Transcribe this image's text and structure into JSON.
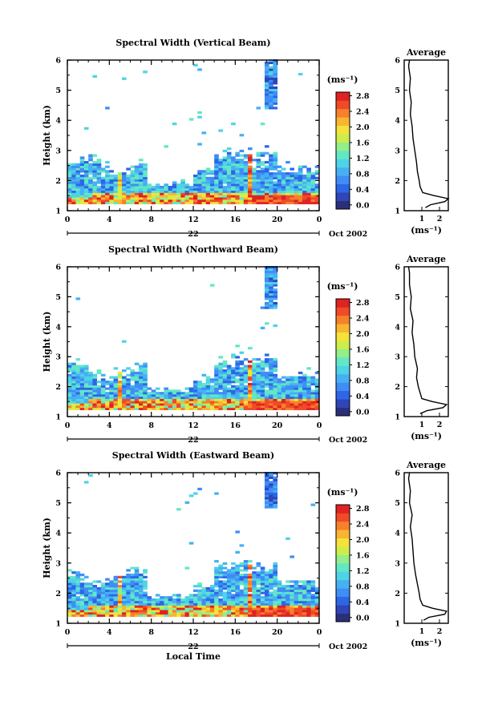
{
  "chart_data": [
    {
      "type": "heatmap",
      "title": "Spectral Width (Vertical Beam)",
      "ylabel": "Height (km)",
      "x_ticks": [
        "0",
        "4",
        "8",
        "12",
        "16",
        "20",
        "0"
      ],
      "xlim": [
        0,
        24
      ],
      "y_ticks": [
        "1",
        "2",
        "3",
        "4",
        "5",
        "6"
      ],
      "ylim": [
        1,
        6
      ],
      "day_label": "22",
      "date_label": "Oct 2002",
      "colorbar": {
        "unit_label": "(ms⁻¹)",
        "ticks": [
          "0.0",
          "0.4",
          "0.8",
          "1.2",
          "1.6",
          "2.0",
          "2.4",
          "2.8"
        ],
        "range": [
          0.0,
          3.0
        ]
      },
      "average_profile": {
        "title": "Average",
        "xlabel": "(ms⁻¹)",
        "x_ticks": [
          "1",
          "2"
        ],
        "y_ticks": [
          "1",
          "2",
          "3",
          "4",
          "5",
          "6"
        ],
        "height_km": [
          1.1,
          1.2,
          1.3,
          1.4,
          1.5,
          1.6,
          1.8,
          2.0,
          2.3,
          2.6,
          3.0,
          3.4,
          3.8,
          4.2,
          4.6,
          5.0,
          5.4,
          5.8,
          6.0
        ],
        "width_ms": [
          1.2,
          1.5,
          2.3,
          2.5,
          1.7,
          1.05,
          0.9,
          0.85,
          0.75,
          0.7,
          0.6,
          0.5,
          0.45,
          0.35,
          0.4,
          0.3,
          0.35,
          0.25,
          0.3
        ]
      }
    },
    {
      "type": "heatmap",
      "title": "Spectral Width (Northward Beam)",
      "ylabel": "Height (km)",
      "x_ticks": [
        "0",
        "4",
        "8",
        "12",
        "16",
        "20",
        "0"
      ],
      "xlim": [
        0,
        24
      ],
      "y_ticks": [
        "1",
        "2",
        "3",
        "4",
        "5",
        "6"
      ],
      "ylim": [
        1,
        6
      ],
      "day_label": "22",
      "date_label": "Oct 2002",
      "colorbar": {
        "unit_label": "(ms⁻¹)",
        "ticks": [
          "0.0",
          "0.4",
          "0.8",
          "1.2",
          "1.6",
          "2.0",
          "2.4",
          "2.8"
        ],
        "range": [
          0.0,
          3.0
        ]
      },
      "average_profile": {
        "title": "Average",
        "xlabel": "(ms⁻¹)",
        "x_ticks": [
          "1",
          "2"
        ],
        "y_ticks": [
          "1",
          "2",
          "3",
          "4",
          "5",
          "6"
        ],
        "height_km": [
          1.1,
          1.2,
          1.3,
          1.4,
          1.5,
          1.6,
          1.8,
          2.0,
          2.3,
          2.6,
          3.0,
          3.4,
          3.8,
          4.2,
          4.6,
          5.0,
          5.4,
          5.8,
          6.0
        ],
        "width_ms": [
          0.9,
          1.3,
          2.2,
          2.4,
          1.6,
          1.0,
          0.9,
          0.8,
          0.7,
          0.75,
          0.6,
          0.55,
          0.45,
          0.5,
          0.35,
          0.4,
          0.3,
          0.3,
          0.25
        ]
      }
    },
    {
      "type": "heatmap",
      "title": "Spectral Width (Eastward Beam)",
      "ylabel": "Height (km)",
      "xlabel": "Local Time",
      "x_ticks": [
        "0",
        "4",
        "8",
        "12",
        "16",
        "20",
        "0"
      ],
      "xlim": [
        0,
        24
      ],
      "y_ticks": [
        "1",
        "2",
        "3",
        "4",
        "5",
        "6"
      ],
      "ylim": [
        1,
        6
      ],
      "day_label": "22",
      "date_label": "Oct 2002",
      "colorbar": {
        "unit_label": "(ms⁻¹)",
        "ticks": [
          "0.0",
          "0.4",
          "0.8",
          "1.2",
          "1.6",
          "2.0",
          "2.4",
          "2.8"
        ],
        "range": [
          0.0,
          3.0
        ]
      },
      "average_profile": {
        "title": "Average",
        "xlabel": "(ms⁻¹)",
        "x_ticks": [
          "1",
          "2"
        ],
        "y_ticks": [
          "1",
          "2",
          "3",
          "4",
          "5",
          "6"
        ],
        "height_km": [
          1.1,
          1.2,
          1.3,
          1.4,
          1.5,
          1.6,
          1.8,
          2.0,
          2.3,
          2.6,
          3.0,
          3.4,
          3.8,
          4.2,
          4.6,
          5.0,
          5.4,
          5.8,
          6.0
        ],
        "width_ms": [
          1.1,
          1.4,
          2.3,
          2.4,
          1.6,
          1.05,
          0.9,
          0.85,
          0.75,
          0.65,
          0.55,
          0.5,
          0.45,
          0.35,
          0.45,
          0.3,
          0.35,
          0.25,
          0.3
        ]
      }
    }
  ],
  "colors": {
    "scale": [
      "#2b2f7a",
      "#2f45b8",
      "#2d66e6",
      "#3f8df5",
      "#47b0f2",
      "#4fd3e6",
      "#63e7c4",
      "#94ee8a",
      "#cdee4a",
      "#f5e23a",
      "#f9b531",
      "#f6812b",
      "#f04a28",
      "#e02222"
    ]
  }
}
